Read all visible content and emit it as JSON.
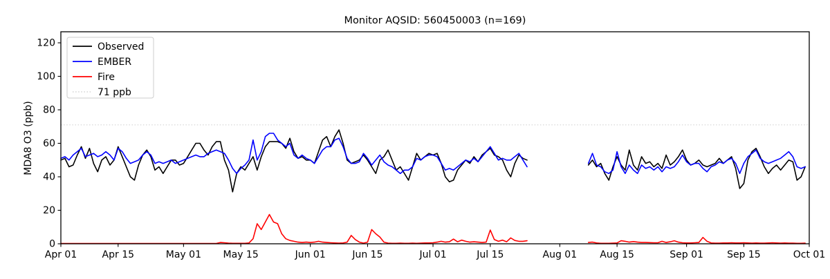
{
  "figure": {
    "background": "#ffffff"
  },
  "chart_data": {
    "type": "line",
    "title": "Monitor AQSID: 560450003 (n=169)",
    "ylabel": "MDA8 O3 (ppb)",
    "xlabel": "",
    "grid": false,
    "legend_position": "upper-left",
    "ylim": [
      0,
      126.6
    ],
    "xlim_days": [
      0,
      183
    ],
    "y_ticks": [
      0,
      20,
      40,
      60,
      80,
      100,
      120
    ],
    "x_ticks": [
      {
        "label": "Apr 01",
        "day": 0
      },
      {
        "label": "Apr 15",
        "day": 14
      },
      {
        "label": "May 01",
        "day": 30
      },
      {
        "label": "May 15",
        "day": 44
      },
      {
        "label": "Jun 01",
        "day": 61
      },
      {
        "label": "Jun 15",
        "day": 75
      },
      {
        "label": "Jul 01",
        "day": 91
      },
      {
        "label": "Jul 15",
        "day": 105
      },
      {
        "label": "Aug 01",
        "day": 122
      },
      {
        "label": "Aug 15",
        "day": 136
      },
      {
        "label": "Sep 01",
        "day": 153
      },
      {
        "label": "Sep 15",
        "day": 167
      },
      {
        "label": "Oct 01",
        "day": 183
      }
    ],
    "x_start_date": "Apr 01",
    "data_gap": {
      "missing_days": 14,
      "from_day": 115,
      "to_day": 128
    },
    "threshold": {
      "label": "71 ppb",
      "value": 71,
      "color": "#d3d3d3",
      "style": "dotted"
    },
    "series": [
      {
        "name": "Observed",
        "color": "#000000",
        "values": [
          50,
          51,
          46,
          47,
          53,
          58,
          51,
          57,
          48,
          43,
          50,
          52,
          47,
          50,
          58,
          52,
          46,
          40,
          38,
          47,
          53,
          56,
          52,
          44,
          46,
          42,
          46,
          50,
          50,
          47,
          48,
          52,
          56,
          60,
          60,
          56,
          53,
          58,
          61,
          61,
          50,
          44,
          31,
          42,
          46,
          44,
          48,
          52,
          44,
          52,
          58,
          61,
          61,
          61,
          60,
          57,
          63,
          55,
          51,
          52,
          50,
          50,
          48,
          55,
          62,
          64,
          58,
          64,
          68,
          60,
          50,
          48,
          49,
          50,
          53,
          50,
          46,
          42,
          50,
          52,
          56,
          50,
          44,
          46,
          42,
          38,
          46,
          54,
          50,
          52,
          54,
          53,
          54,
          48,
          40,
          37,
          38,
          44,
          47,
          50,
          48,
          52,
          49,
          53,
          55,
          57,
          53,
          52,
          50,
          44,
          40,
          48,
          53,
          51,
          50,
          null,
          null,
          null,
          null,
          null,
          null,
          null,
          null,
          null,
          null,
          null,
          null,
          null,
          null,
          47,
          50,
          46,
          48,
          42,
          38,
          46,
          52,
          47,
          44,
          56,
          47,
          44,
          52,
          48,
          49,
          46,
          48,
          45,
          53,
          47,
          49,
          52,
          56,
          50,
          47,
          48,
          50,
          47,
          46,
          47,
          48,
          51,
          48,
          50,
          52,
          45,
          33,
          36,
          50,
          55,
          57,
          52,
          46,
          42,
          45,
          47,
          44,
          47,
          50,
          49,
          38,
          40,
          46
        ]
      },
      {
        "name": "EMBER",
        "color": "#0000ff",
        "values": [
          51,
          52,
          50,
          53,
          55,
          57,
          52,
          53,
          54,
          52,
          53,
          55,
          53,
          50,
          57,
          55,
          51,
          48,
          49,
          50,
          53,
          55,
          53,
          48,
          49,
          48,
          49,
          50,
          48,
          49,
          50,
          51,
          52,
          53,
          52,
          52,
          54,
          55,
          56,
          55,
          54,
          50,
          45,
          42,
          45,
          47,
          50,
          62,
          50,
          55,
          64,
          66,
          66,
          62,
          60,
          58,
          60,
          53,
          51,
          53,
          51,
          50,
          48,
          52,
          56,
          58,
          58,
          62,
          63,
          58,
          51,
          48,
          48,
          49,
          54,
          51,
          47,
          50,
          53,
          49,
          47,
          46,
          44,
          42,
          44,
          44,
          46,
          51,
          50,
          52,
          53,
          53,
          52,
          48,
          44,
          45,
          44,
          46,
          48,
          50,
          49,
          51,
          49,
          52,
          55,
          58,
          54,
          50,
          51,
          50,
          50,
          52,
          54,
          50,
          46,
          null,
          null,
          null,
          null,
          null,
          null,
          null,
          null,
          null,
          null,
          null,
          null,
          null,
          null,
          48,
          54,
          47,
          46,
          43,
          42,
          44,
          55,
          46,
          42,
          47,
          44,
          42,
          47,
          45,
          46,
          44,
          46,
          43,
          46,
          45,
          46,
          49,
          53,
          49,
          47,
          48,
          48,
          45,
          43,
          46,
          47,
          49,
          48,
          50,
          51,
          48,
          42,
          48,
          52,
          54,
          56,
          51,
          49,
          48,
          49,
          50,
          51,
          53,
          55,
          52,
          46,
          45,
          46
        ]
      },
      {
        "name": "Fire",
        "color": "#ff0000",
        "values": [
          0.2,
          0.2,
          0.2,
          0.2,
          0.2,
          0.2,
          0.2,
          0.2,
          0.2,
          0.2,
          0.2,
          0.2,
          0.2,
          0.2,
          0.2,
          0.2,
          0.2,
          0.2,
          0.2,
          0.2,
          0.2,
          0.2,
          0.2,
          0.2,
          0.2,
          0.2,
          0.2,
          0.2,
          0.2,
          0.2,
          0.2,
          0.2,
          0.2,
          0.2,
          0.2,
          0.2,
          0.2,
          0.2,
          0.2,
          0.8,
          0.6,
          0.4,
          0.3,
          0.3,
          0.3,
          0.3,
          0.5,
          3,
          12,
          8.5,
          13,
          17.5,
          13,
          12,
          6,
          3,
          2,
          1.5,
          1,
          0.8,
          1,
          0.8,
          1,
          1.5,
          1,
          0.8,
          0.6,
          0.5,
          0.4,
          0.5,
          1,
          5,
          2.5,
          1,
          0.4,
          1,
          8.5,
          6,
          4,
          1,
          0.4,
          0.3,
          0.3,
          0.4,
          0.3,
          0.3,
          0.4,
          0.3,
          0.4,
          0.5,
          0.5,
          0.6,
          1,
          1.5,
          1,
          1.2,
          2.8,
          1.2,
          2.2,
          1.5,
          1,
          1.2,
          1,
          0.8,
          1,
          8.2,
          2.5,
          1.5,
          2.2,
          1.2,
          3.5,
          2,
          1.5,
          1.5,
          1.8,
          null,
          null,
          null,
          null,
          null,
          null,
          null,
          null,
          null,
          null,
          null,
          null,
          null,
          null,
          0.8,
          1,
          0.5,
          0.3,
          0.3,
          0.3,
          0.4,
          0.5,
          1.8,
          1.5,
          1,
          1.3,
          1,
          0.8,
          0.8,
          0.7,
          0.6,
          0.6,
          1.5,
          0.8,
          1.2,
          1.8,
          1,
          0.6,
          0.5,
          0.5,
          0.6,
          0.8,
          3.8,
          1.5,
          0.5,
          0.4,
          0.4,
          0.5,
          0.5,
          0.6,
          0.5,
          0.5,
          0.6,
          0.5,
          0.4,
          0.5,
          0.4,
          0.4,
          0.5,
          0.6,
          0.5,
          0.4,
          0.5,
          0.4,
          0.4,
          0.3,
          0.3,
          0.4
        ]
      }
    ]
  }
}
